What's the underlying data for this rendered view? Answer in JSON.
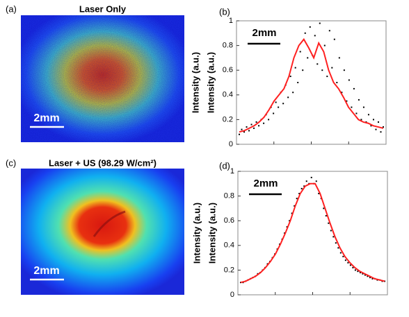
{
  "chart_data": [
    {
      "type": "image",
      "label": "(a)",
      "title": "Laser Only",
      "scale_bar": "2mm",
      "pattern": "speckle"
    },
    {
      "type": "scatter",
      "label": "(b)",
      "ylabels": [
        "Intensity (a.u.)",
        "Intensity (a.u.)"
      ],
      "scale_bar": "2mm",
      "ylim": [
        0,
        1
      ],
      "yticks": [
        0,
        0.2,
        0.4,
        0.6,
        0.8,
        1
      ],
      "series": [
        {
          "type": "scatter",
          "color": "#000000",
          "values": [
            0.08,
            0.12,
            0.1,
            0.14,
            0.11,
            0.16,
            0.13,
            0.18,
            0.15,
            0.2,
            0.17,
            0.24,
            0.2,
            0.3,
            0.25,
            0.34,
            0.3,
            0.42,
            0.33,
            0.48,
            0.38,
            0.55,
            0.42,
            0.62,
            0.5,
            0.75,
            0.6,
            0.9,
            0.7,
            0.95,
            0.72,
            0.88,
            0.65,
            0.98,
            0.6,
            0.8,
            0.55,
            0.92,
            0.62,
            0.85,
            0.5,
            0.7,
            0.42,
            0.6,
            0.35,
            0.52,
            0.3,
            0.45,
            0.25,
            0.36,
            0.2,
            0.3,
            0.18,
            0.24,
            0.15,
            0.2,
            0.12,
            0.18,
            0.1,
            0.14
          ]
        },
        {
          "type": "line",
          "color": "#ff2020",
          "values": [
            0.1,
            0.11,
            0.13,
            0.15,
            0.18,
            0.22,
            0.28,
            0.35,
            0.4,
            0.45,
            0.55,
            0.7,
            0.8,
            0.85,
            0.78,
            0.7,
            0.82,
            0.75,
            0.6,
            0.5,
            0.45,
            0.38,
            0.3,
            0.25,
            0.2,
            0.18,
            0.17,
            0.15,
            0.14,
            0.13
          ]
        }
      ]
    },
    {
      "type": "image",
      "label": "(c)",
      "title": "Laser + US (98.29 W/cm²)",
      "scale_bar": "2mm",
      "pattern": "smooth"
    },
    {
      "type": "scatter",
      "label": "(d)",
      "ylabels": [
        "Intensity (a.u.)",
        "Intensity (a.u.)"
      ],
      "scale_bar": "2mm",
      "ylim": [
        0,
        1
      ],
      "yticks": [
        0,
        0.2,
        0.4,
        0.6,
        0.8,
        1
      ],
      "series": [
        {
          "type": "scatter",
          "color": "#000000",
          "values": [
            0.1,
            0.1,
            0.11,
            0.12,
            0.13,
            0.14,
            0.15,
            0.17,
            0.18,
            0.2,
            0.22,
            0.25,
            0.27,
            0.3,
            0.33,
            0.37,
            0.41,
            0.45,
            0.5,
            0.55,
            0.6,
            0.66,
            0.72,
            0.78,
            0.82,
            0.86,
            0.88,
            0.92,
            0.9,
            0.95,
            0.9,
            0.92,
            0.82,
            0.78,
            0.7,
            0.64,
            0.58,
            0.52,
            0.47,
            0.42,
            0.38,
            0.34,
            0.31,
            0.28,
            0.26,
            0.24,
            0.22,
            0.2,
            0.19,
            0.18,
            0.17,
            0.16,
            0.15,
            0.14,
            0.13,
            0.13,
            0.12,
            0.12,
            0.11,
            0.11
          ]
        },
        {
          "type": "line",
          "color": "#ff2020",
          "values": [
            0.1,
            0.11,
            0.13,
            0.15,
            0.18,
            0.22,
            0.27,
            0.33,
            0.41,
            0.5,
            0.6,
            0.72,
            0.82,
            0.88,
            0.9,
            0.9,
            0.82,
            0.7,
            0.58,
            0.47,
            0.38,
            0.31,
            0.26,
            0.22,
            0.19,
            0.17,
            0.15,
            0.13,
            0.12,
            0.11
          ]
        }
      ]
    }
  ]
}
